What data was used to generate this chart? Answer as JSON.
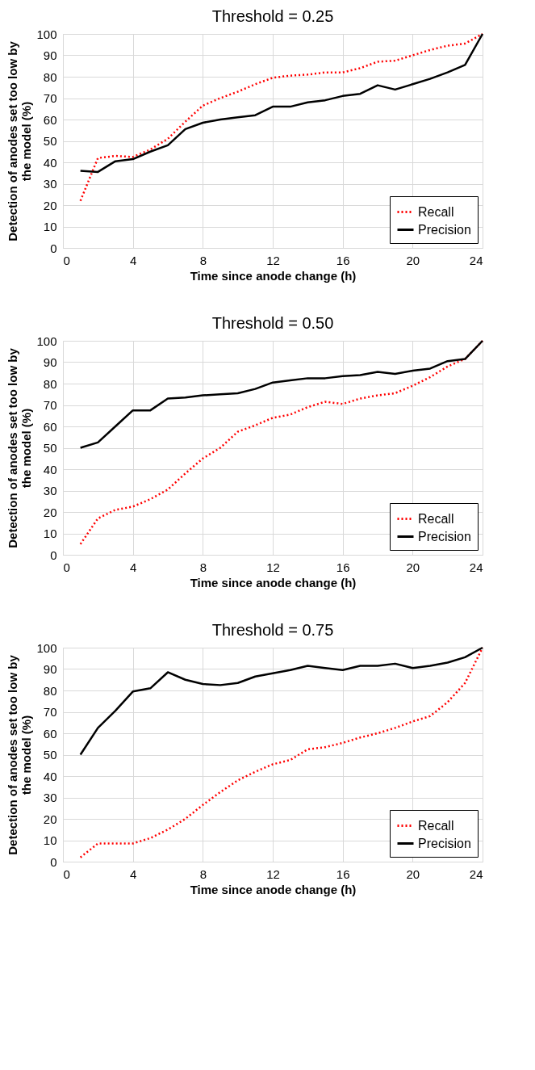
{
  "chart_data": [
    {
      "type": "line",
      "title": "Threshold = 0.25",
      "xlabel": "Time since anode change (h)",
      "ylabel": "Detection of anodes set too low by the model (%)",
      "x": [
        1,
        2,
        3,
        4,
        5,
        6,
        7,
        8,
        9,
        10,
        11,
        12,
        13,
        14,
        15,
        16,
        17,
        18,
        19,
        20,
        21,
        22,
        23,
        24
      ],
      "series": [
        {
          "name": "Recall",
          "color": "#ff0000",
          "line_style": "dotted",
          "values": [
            22,
            42,
            43,
            42.5,
            46,
            51,
            59,
            66.5,
            70,
            73,
            76.5,
            79.5,
            80.5,
            81,
            82,
            82,
            84,
            87,
            87.5,
            90,
            92.5,
            94.5,
            95.5,
            100
          ]
        },
        {
          "name": "Precision",
          "color": "#000000",
          "line_style": "solid",
          "values": [
            36,
            35.5,
            40.5,
            41.5,
            45,
            48,
            55.5,
            58.5,
            60,
            61,
            62,
            66,
            66,
            68,
            69,
            71,
            72,
            76,
            74,
            76.5,
            79,
            82,
            85.5,
            100
          ]
        }
      ],
      "xlim": [
        0,
        24
      ],
      "xticks": [
        0,
        4,
        8,
        12,
        16,
        20,
        24
      ],
      "ylim": [
        0,
        100
      ],
      "yticks": [
        0,
        10,
        20,
        30,
        40,
        50,
        60,
        70,
        80,
        90,
        100
      ],
      "grid": true,
      "legend": "bottom right",
      "marker": "none"
    },
    {
      "type": "line",
      "title": "Threshold = 0.50",
      "xlabel": "Time since anode change (h)",
      "ylabel": "Detection of anodes set too low by the model (%)",
      "x": [
        1,
        2,
        3,
        4,
        5,
        6,
        7,
        8,
        9,
        10,
        11,
        12,
        13,
        14,
        15,
        16,
        17,
        18,
        19,
        20,
        21,
        22,
        23,
        24
      ],
      "series": [
        {
          "name": "Recall",
          "color": "#ff0000",
          "line_style": "dotted",
          "values": [
            5,
            17,
            21,
            22.5,
            26,
            30.5,
            38,
            45,
            50,
            57.5,
            60.5,
            64,
            65.5,
            69,
            71.5,
            70.5,
            73,
            74.5,
            75.5,
            79,
            83,
            88,
            91.5,
            100
          ]
        },
        {
          "name": "Precision",
          "color": "#000000",
          "line_style": "solid",
          "values": [
            50,
            52.5,
            60,
            67.5,
            67.5,
            73,
            73.5,
            74.5,
            75,
            75.5,
            77.5,
            80.5,
            81.5,
            82.5,
            82.5,
            83.5,
            84,
            85.5,
            84.5,
            86,
            87,
            90.5,
            91.5,
            100
          ]
        }
      ],
      "xlim": [
        0,
        24
      ],
      "xticks": [
        0,
        4,
        8,
        12,
        16,
        20,
        24
      ],
      "ylim": [
        0,
        100
      ],
      "yticks": [
        0,
        10,
        20,
        30,
        40,
        50,
        60,
        70,
        80,
        90,
        100
      ],
      "grid": true,
      "legend": "bottom right",
      "marker": "none"
    },
    {
      "type": "line",
      "title": "Threshold = 0.75",
      "xlabel": "Time since anode change (h)",
      "ylabel": "Detection of anodes set too low by the model (%)",
      "x": [
        1,
        2,
        3,
        4,
        5,
        6,
        7,
        8,
        9,
        10,
        11,
        12,
        13,
        14,
        15,
        16,
        17,
        18,
        19,
        20,
        21,
        22,
        23,
        24
      ],
      "series": [
        {
          "name": "Recall",
          "color": "#ff0000",
          "line_style": "dotted",
          "values": [
            2,
            8.5,
            8.5,
            8.5,
            11,
            15,
            20,
            26.5,
            32.5,
            38,
            42,
            45.5,
            47.5,
            52.5,
            53.5,
            55.5,
            58,
            60,
            62.5,
            65.5,
            68,
            74.5,
            83.5,
            100
          ]
        },
        {
          "name": "Precision",
          "color": "#000000",
          "line_style": "solid",
          "values": [
            50,
            62.5,
            70.5,
            79.5,
            81,
            88.5,
            85,
            83,
            82.5,
            83.5,
            86.5,
            88,
            89.5,
            91.5,
            90.5,
            89.5,
            91.5,
            91.5,
            92.5,
            90.5,
            91.5,
            93,
            95.5,
            100
          ]
        }
      ],
      "xlim": [
        0,
        24
      ],
      "xticks": [
        0,
        4,
        8,
        12,
        16,
        20,
        24
      ],
      "ylim": [
        0,
        100
      ],
      "yticks": [
        0,
        10,
        20,
        30,
        40,
        50,
        60,
        70,
        80,
        90,
        100
      ],
      "grid": true,
      "legend": "bottom right",
      "marker": "none"
    }
  ]
}
